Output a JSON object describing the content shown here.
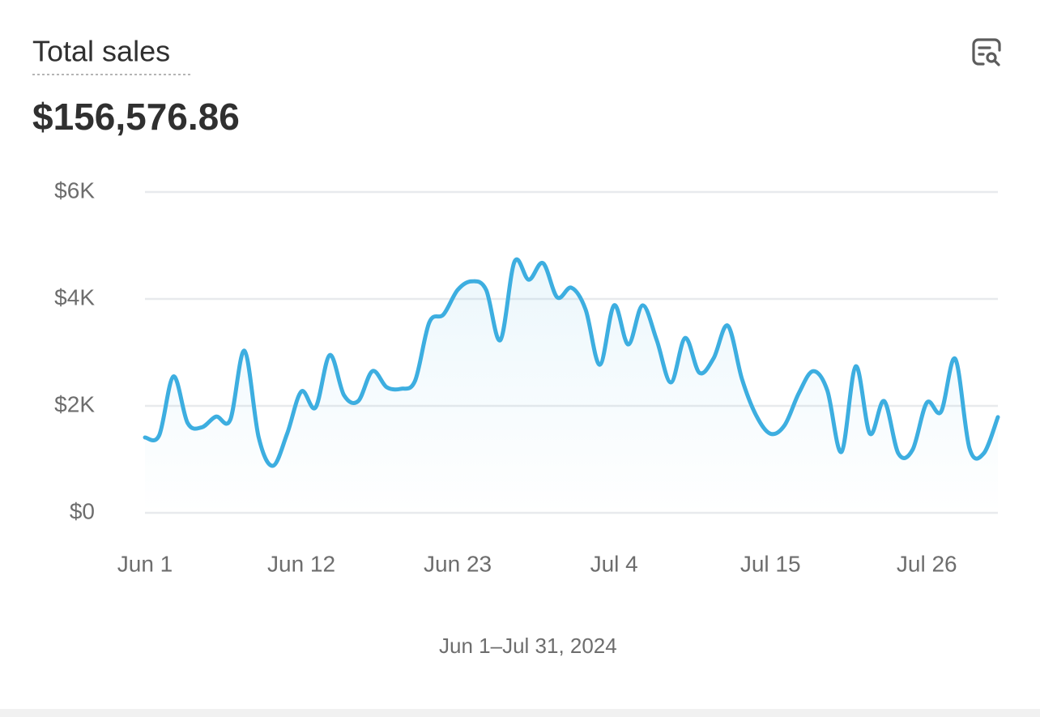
{
  "chart_data": {
    "type": "line",
    "title": "Total sales",
    "summary": "$156,576.86",
    "categories": [
      "Jun 1",
      null,
      null,
      null,
      null,
      null,
      null,
      null,
      null,
      null,
      null,
      "Jun 12",
      null,
      null,
      null,
      null,
      null,
      null,
      null,
      null,
      null,
      null,
      "Jun 23",
      null,
      null,
      null,
      null,
      null,
      null,
      null,
      null,
      null,
      null,
      "Jul 4",
      null,
      null,
      null,
      null,
      null,
      null,
      null,
      null,
      null,
      null,
      "Jul 15",
      null,
      null,
      null,
      null,
      null,
      null,
      null,
      null,
      null,
      null,
      "Jul 26",
      null,
      null,
      null,
      null,
      null
    ],
    "series": [
      {
        "name": "Jun 1–Jul 31, 2024",
        "color": "#3daee0",
        "values": [
          1410,
          1450,
          2550,
          1680,
          1600,
          1800,
          1740,
          3030,
          1410,
          880,
          1480,
          2270,
          1970,
          2950,
          2200,
          2090,
          2650,
          2350,
          2320,
          2470,
          3560,
          3710,
          4170,
          4330,
          4170,
          3230,
          4700,
          4360,
          4670,
          4030,
          4210,
          3800,
          2770,
          3880,
          3150,
          3880,
          3230,
          2440,
          3270,
          2620,
          2890,
          3500,
          2500,
          1820,
          1480,
          1640,
          2240,
          2650,
          2290,
          1140,
          2740,
          1480,
          2090,
          1110,
          1180,
          2060,
          1890,
          2880,
          1210,
          1110,
          1790
        ]
      }
    ],
    "ylim": [
      0,
      6000
    ],
    "yticks": [
      {
        "value": 0,
        "label": "$0"
      },
      {
        "value": 2000,
        "label": "$2K"
      },
      {
        "value": 4000,
        "label": "$4K"
      },
      {
        "value": 6000,
        "label": "$6K"
      }
    ],
    "grid": true,
    "legend": "bottom"
  }
}
